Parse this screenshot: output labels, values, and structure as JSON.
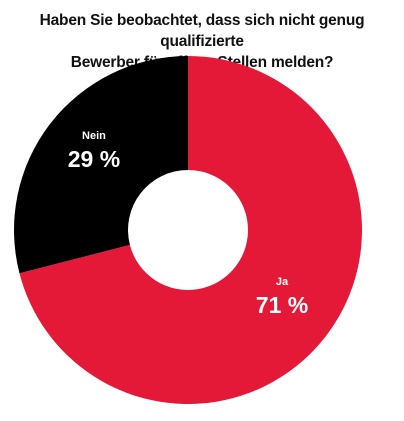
{
  "chart_data": {
    "type": "pie",
    "variant": "donut",
    "title_lines": [
      "Haben Sie beobachtet, dass sich nicht genug qualifizierte",
      "Bewerber für offene Stellen melden?"
    ],
    "slices": [
      {
        "name": "Ja",
        "value": 71,
        "value_label": "71 %",
        "color": "#e31937",
        "label_color": "#ffffff"
      },
      {
        "name": "Nein",
        "value": 29,
        "value_label": "29 %",
        "color": "#000000",
        "label_color": "#ffffff"
      }
    ],
    "start_angle_deg": 0,
    "direction": "clockwise",
    "legend": "none"
  }
}
